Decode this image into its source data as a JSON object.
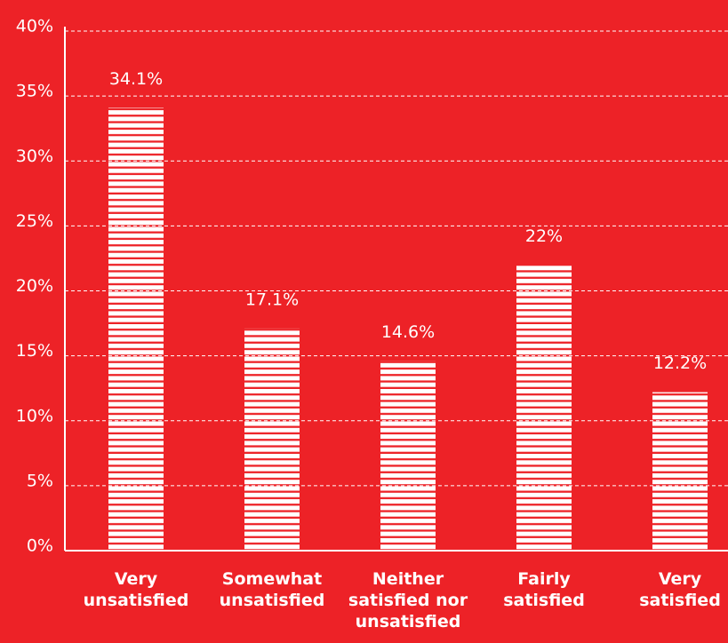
{
  "chart_data": {
    "type": "bar",
    "categories": [
      "Very\nunsatisfied",
      "Somewhat\nunsatisfied",
      "Neither\nsatisfied nor\nunsatisfied",
      "Fairly\nsatisfied",
      "Very\nsatisfied"
    ],
    "values": [
      34.1,
      17.1,
      14.6,
      22,
      12.2
    ],
    "value_labels": [
      "34.1%",
      "17.1%",
      "14.6%",
      "22%",
      "12.2%"
    ],
    "color": "#ffffff",
    "background": "#ed2227",
    "ylim": [
      0,
      40
    ],
    "yticks": [
      {
        "value": 0,
        "label": "0%"
      },
      {
        "value": 5,
        "label": "5%"
      },
      {
        "value": 10,
        "label": "10%"
      },
      {
        "value": 15,
        "label": "15%"
      },
      {
        "value": 20,
        "label": "20%"
      },
      {
        "value": 25,
        "label": "25%"
      },
      {
        "value": 30,
        "label": "30%"
      },
      {
        "value": 35,
        "label": "35%"
      },
      {
        "value": 40,
        "label": "40%"
      }
    ],
    "grid": true
  }
}
